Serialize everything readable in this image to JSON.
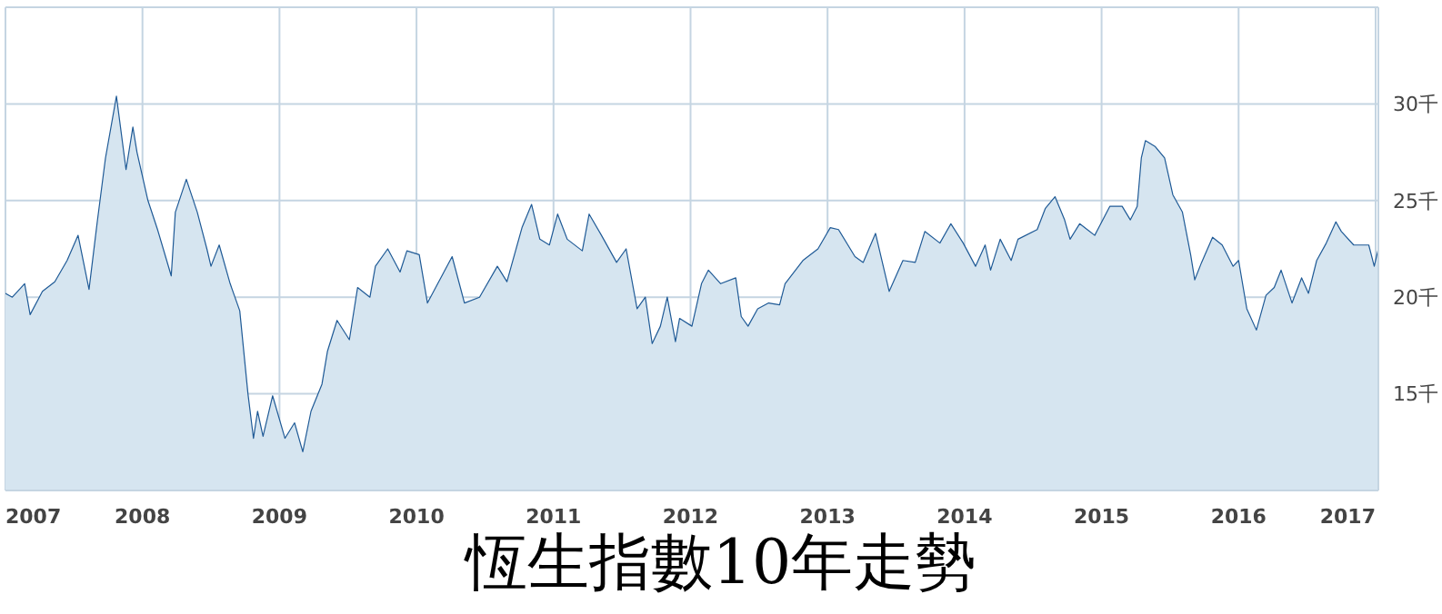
{
  "chart_data": {
    "type": "area",
    "title": "恆生指數10年走勢",
    "x": [
      2007.0,
      2007.05,
      2007.14,
      2007.18,
      2007.27,
      2007.36,
      2007.45,
      2007.53,
      2007.61,
      2007.67,
      2007.73,
      2007.81,
      2007.88,
      2007.93,
      2007.96,
      2008.04,
      2008.11,
      2008.21,
      2008.24,
      2008.32,
      2008.4,
      2008.47,
      2008.5,
      2008.56,
      2008.64,
      2008.71,
      2008.77,
      2008.81,
      2008.84,
      2008.88,
      2008.95,
      2009.04,
      2009.11,
      2009.17,
      2009.23,
      2009.31,
      2009.35,
      2009.42,
      2009.51,
      2009.57,
      2009.66,
      2009.7,
      2009.79,
      2009.88,
      2009.93,
      2010.02,
      2010.08,
      2010.2,
      2010.26,
      2010.35,
      2010.46,
      2010.59,
      2010.66,
      2010.77,
      2010.84,
      2010.9,
      2010.97,
      2011.03,
      2011.1,
      2011.21,
      2011.26,
      2011.35,
      2011.46,
      2011.53,
      2011.61,
      2011.67,
      2011.72,
      2011.78,
      2011.83,
      2011.89,
      2011.92,
      2012.01,
      2012.08,
      2012.13,
      2012.22,
      2012.33,
      2012.37,
      2012.42,
      2012.49,
      2012.57,
      2012.65,
      2012.69,
      2012.82,
      2012.93,
      2013.02,
      2013.08,
      2013.2,
      2013.26,
      2013.35,
      2013.45,
      2013.55,
      2013.64,
      2013.71,
      2013.82,
      2013.9,
      2013.99,
      2014.08,
      2014.15,
      2014.19,
      2014.26,
      2014.34,
      2014.39,
      2014.53,
      2014.59,
      2014.66,
      2014.73,
      2014.77,
      2014.84,
      2014.95,
      2015.06,
      2015.15,
      2015.21,
      2015.26,
      2015.29,
      2015.32,
      2015.39,
      2015.46,
      2015.52,
      2015.59,
      2015.65,
      2015.68,
      2015.73,
      2015.81,
      2015.88,
      2015.96,
      2016.0,
      2016.06,
      2016.13,
      2016.2,
      2016.26,
      2016.31,
      2016.39,
      2016.46,
      2016.51,
      2016.57,
      2016.64,
      2016.71,
      2016.75,
      2016.84,
      2016.95,
      2016.99,
      2017.02
    ],
    "series": [
      {
        "color": "#1f5a96",
        "values": [
          20.2,
          20.0,
          20.7,
          19.1,
          20.3,
          20.8,
          21.9,
          23.2,
          20.4,
          23.9,
          27.2,
          30.4,
          26.6,
          28.8,
          27.5,
          25.0,
          23.5,
          21.1,
          24.4,
          26.1,
          24.4,
          22.5,
          21.6,
          22.7,
          20.7,
          19.3,
          15.0,
          12.7,
          14.1,
          12.8,
          14.9,
          12.7,
          13.5,
          12.0,
          14.1,
          15.5,
          17.2,
          18.8,
          17.8,
          20.5,
          20.0,
          21.6,
          22.5,
          21.3,
          22.4,
          22.2,
          19.7,
          21.3,
          22.1,
          19.7,
          20.0,
          21.6,
          20.8,
          23.6,
          24.8,
          23.0,
          22.7,
          24.3,
          23.0,
          22.4,
          24.3,
          23.2,
          21.8,
          22.5,
          19.4,
          20.0,
          17.6,
          18.5,
          20.0,
          17.7,
          18.9,
          18.5,
          20.7,
          21.4,
          20.7,
          21.0,
          19.0,
          18.5,
          19.4,
          19.7,
          19.6,
          20.7,
          21.9,
          22.5,
          23.6,
          23.5,
          22.1,
          21.8,
          23.3,
          20.3,
          21.9,
          21.8,
          23.4,
          22.8,
          23.8,
          22.8,
          21.6,
          22.7,
          21.4,
          23.0,
          21.9,
          23.0,
          23.5,
          24.6,
          25.2,
          24.0,
          23.0,
          23.8,
          23.2,
          24.7,
          24.7,
          24.0,
          24.7,
          27.2,
          28.1,
          27.8,
          27.2,
          25.3,
          24.4,
          22.2,
          20.9,
          21.8,
          23.1,
          22.7,
          21.6,
          21.9,
          19.4,
          18.3,
          20.1,
          20.5,
          21.4,
          19.7,
          21.0,
          20.2,
          21.9,
          22.8,
          23.9,
          23.4,
          22.7,
          22.7,
          21.6,
          22.5
        ]
      }
    ],
    "xlim": [
      2007,
      2017.02
    ],
    "xticks": [
      2007,
      2008,
      2009,
      2010,
      2011,
      2012,
      2013,
      2014,
      2015,
      2016,
      2017
    ],
    "ylim": [
      10,
      35
    ],
    "yticks": [
      {
        "value": 15,
        "label": "15千"
      },
      {
        "value": 20,
        "label": "20千"
      },
      {
        "value": 25,
        "label": "25千"
      },
      {
        "value": 30,
        "label": "30千"
      }
    ],
    "grid": true
  }
}
